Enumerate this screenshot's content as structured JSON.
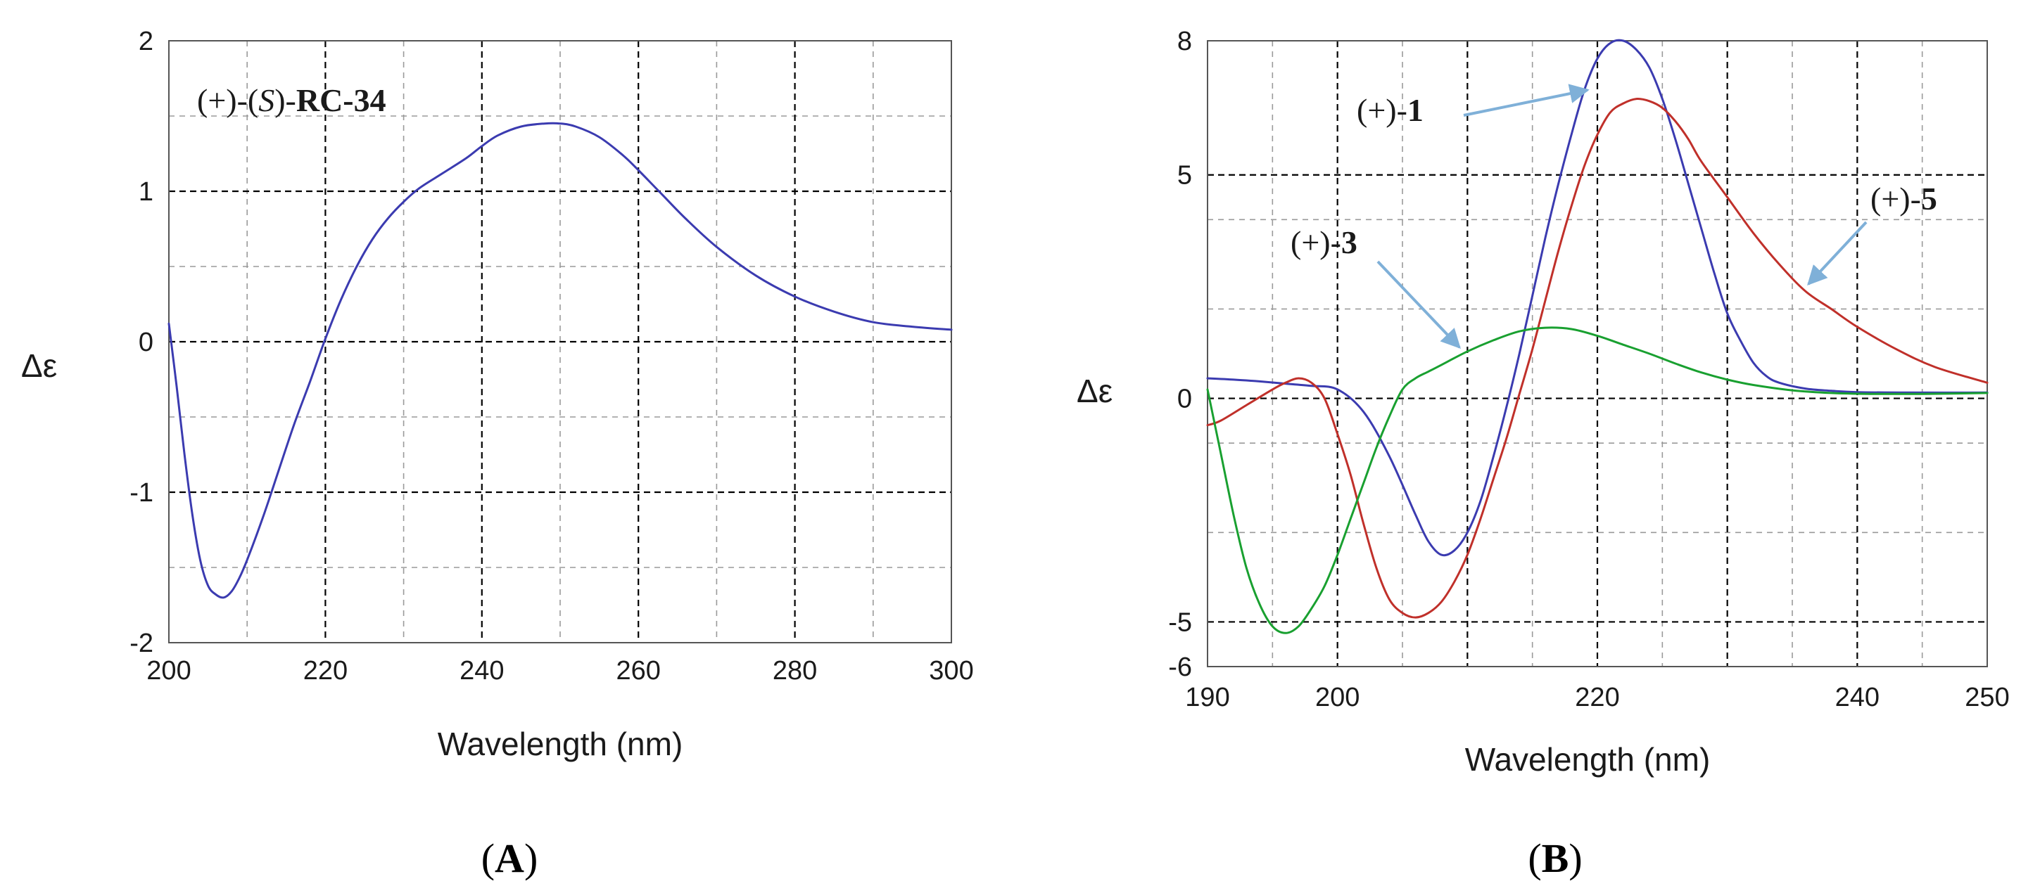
{
  "colors": {
    "blue": "#3b3bb0",
    "red": "#c0302a",
    "green": "#19a030",
    "arrow": "#7fb0d8",
    "grid_major": "#000000",
    "grid_minor": "#9a9a9a"
  },
  "chart_data": [
    {
      "panel": "A",
      "type": "line",
      "xlabel": "Wavelength  (nm)",
      "ylabel": "Δε",
      "xlim": [
        200,
        300
      ],
      "ylim": [
        -2,
        2
      ],
      "xticks": [
        200,
        220,
        240,
        260,
        280,
        300
      ],
      "xtick_labels": [
        "200",
        "220",
        "240",
        "260",
        "280",
        "300"
      ],
      "yticks": [
        -2,
        -1,
        0,
        1,
        2
      ],
      "ytick_labels": [
        "-2",
        "-1",
        "0",
        "1",
        "2"
      ],
      "major_grid_x": [
        220,
        240,
        260,
        280
      ],
      "minor_grid_x": [
        210,
        230,
        250,
        270,
        290
      ],
      "major_grid_y": [
        -1,
        0,
        1
      ],
      "minor_grid_y": [
        -1.5,
        -0.5,
        0.5,
        1.5
      ],
      "annotation": {
        "prefix": "(+)-(",
        "italic": "S",
        "mid": ")-",
        "bold": "RC-34"
      },
      "series": [
        {
          "name": "(+)-(S)-RC-34",
          "color": "#3b3bb0",
          "x": [
            200,
            201,
            202,
            203,
            204,
            205,
            206,
            207,
            208,
            209,
            210,
            212,
            214,
            216,
            218,
            220,
            222,
            224,
            226,
            228,
            230,
            232,
            235,
            238,
            240,
            242,
            245,
            248,
            250,
            252,
            255,
            258,
            260,
            263,
            266,
            270,
            275,
            280,
            285,
            290,
            295,
            300
          ],
          "y": [
            0.12,
            -0.3,
            -0.75,
            -1.15,
            -1.45,
            -1.62,
            -1.68,
            -1.7,
            -1.66,
            -1.57,
            -1.45,
            -1.17,
            -0.86,
            -0.55,
            -0.27,
            0.02,
            0.28,
            0.5,
            0.68,
            0.82,
            0.93,
            1.02,
            1.12,
            1.22,
            1.3,
            1.37,
            1.43,
            1.45,
            1.45,
            1.43,
            1.36,
            1.24,
            1.14,
            0.98,
            0.82,
            0.63,
            0.44,
            0.3,
            0.2,
            0.13,
            0.1,
            0.08
          ]
        }
      ],
      "panel_label": {
        "open": "(",
        "letter": "A",
        "close": ")"
      }
    },
    {
      "panel": "B",
      "type": "line",
      "xlabel": "Wavelength  (nm)",
      "ylabel": "Δε",
      "xlim": [
        190,
        250
      ],
      "ylim": [
        -6,
        8
      ],
      "xticks": [
        190,
        200,
        220,
        240,
        250
      ],
      "xtick_labels": [
        "190",
        "200",
        "220",
        "240",
        "250"
      ],
      "yticks": [
        8,
        5,
        0,
        -5,
        -6
      ],
      "ytick_labels": [
        "8",
        "5",
        "0",
        "-5",
        "-6"
      ],
      "major_grid_x": [
        200,
        210,
        220,
        230,
        240
      ],
      "minor_grid_x": [
        195,
        205,
        215,
        225,
        235,
        245
      ],
      "major_grid_y": [
        -5,
        0,
        5
      ],
      "minor_grid_y": [
        -3,
        -1,
        2,
        4
      ],
      "annotations": [
        {
          "prefix": "(+)-",
          "bold": "1",
          "color": "#3b3bb0"
        },
        {
          "prefix": "(+)-",
          "bold": "3",
          "color": "#19a030"
        },
        {
          "prefix": "(+)-",
          "bold": "5",
          "color": "#c0302a"
        }
      ],
      "series": [
        {
          "name": "(+)-1",
          "color": "#3b3bb0",
          "x": [
            190,
            192,
            194,
            196,
            198,
            200,
            202,
            204,
            206,
            207,
            208,
            209,
            210,
            211,
            212,
            213,
            214,
            215,
            216,
            217,
            218,
            219,
            220,
            221,
            222,
            223,
            224,
            225,
            226,
            227,
            228,
            229,
            230,
            231,
            232,
            233,
            234,
            236,
            238,
            240,
            244,
            250
          ],
          "y": [
            0.45,
            0.42,
            0.38,
            0.33,
            0.28,
            0.2,
            -0.3,
            -1.3,
            -2.6,
            -3.2,
            -3.5,
            -3.4,
            -3.0,
            -2.3,
            -1.3,
            -0.2,
            1.0,
            2.3,
            3.6,
            4.8,
            5.9,
            6.9,
            7.6,
            7.95,
            8.0,
            7.8,
            7.4,
            6.7,
            5.8,
            4.8,
            3.8,
            2.8,
            1.9,
            1.3,
            0.8,
            0.5,
            0.35,
            0.22,
            0.17,
            0.14,
            0.13,
            0.13
          ]
        },
        {
          "name": "(+)-5",
          "color": "#c0302a",
          "x": [
            190,
            191,
            193,
            195,
            196,
            197,
            198,
            199,
            200,
            201,
            202,
            203,
            204,
            205,
            206,
            207,
            208,
            209,
            210,
            211,
            212,
            213,
            214,
            215,
            216,
            217,
            218,
            219,
            220,
            221,
            222,
            223,
            224,
            225,
            226,
            227,
            228,
            230,
            232,
            234,
            236,
            238,
            240,
            243,
            246,
            250
          ],
          "y": [
            -0.6,
            -0.5,
            -0.15,
            0.2,
            0.35,
            0.45,
            0.35,
            0.0,
            -0.8,
            -1.7,
            -2.8,
            -3.8,
            -4.5,
            -4.8,
            -4.9,
            -4.8,
            -4.55,
            -4.1,
            -3.5,
            -2.7,
            -1.8,
            -0.9,
            0.1,
            1.1,
            2.2,
            3.3,
            4.3,
            5.2,
            5.9,
            6.4,
            6.6,
            6.7,
            6.65,
            6.5,
            6.2,
            5.8,
            5.3,
            4.5,
            3.7,
            3.0,
            2.4,
            2.0,
            1.6,
            1.1,
            0.7,
            0.35
          ]
        },
        {
          "name": "(+)-3",
          "color": "#19a030",
          "x": [
            190,
            191,
            192,
            193,
            194,
            195,
            196,
            197,
            198,
            199,
            200,
            201,
            202,
            203,
            204,
            205,
            206,
            207,
            208,
            210,
            212,
            214,
            216,
            218,
            220,
            222,
            224,
            226,
            228,
            230,
            232,
            235,
            238,
            241,
            245,
            250
          ],
          "y": [
            0.2,
            -1.2,
            -2.6,
            -3.8,
            -4.6,
            -5.1,
            -5.25,
            -5.1,
            -4.7,
            -4.2,
            -3.5,
            -2.7,
            -1.9,
            -1.1,
            -0.4,
            0.2,
            0.45,
            0.6,
            0.75,
            1.05,
            1.3,
            1.5,
            1.58,
            1.55,
            1.4,
            1.2,
            1.0,
            0.78,
            0.58,
            0.42,
            0.3,
            0.18,
            0.12,
            0.1,
            0.1,
            0.12
          ]
        }
      ],
      "panel_label": {
        "open": "(",
        "letter": "B",
        "close": ")"
      }
    }
  ]
}
